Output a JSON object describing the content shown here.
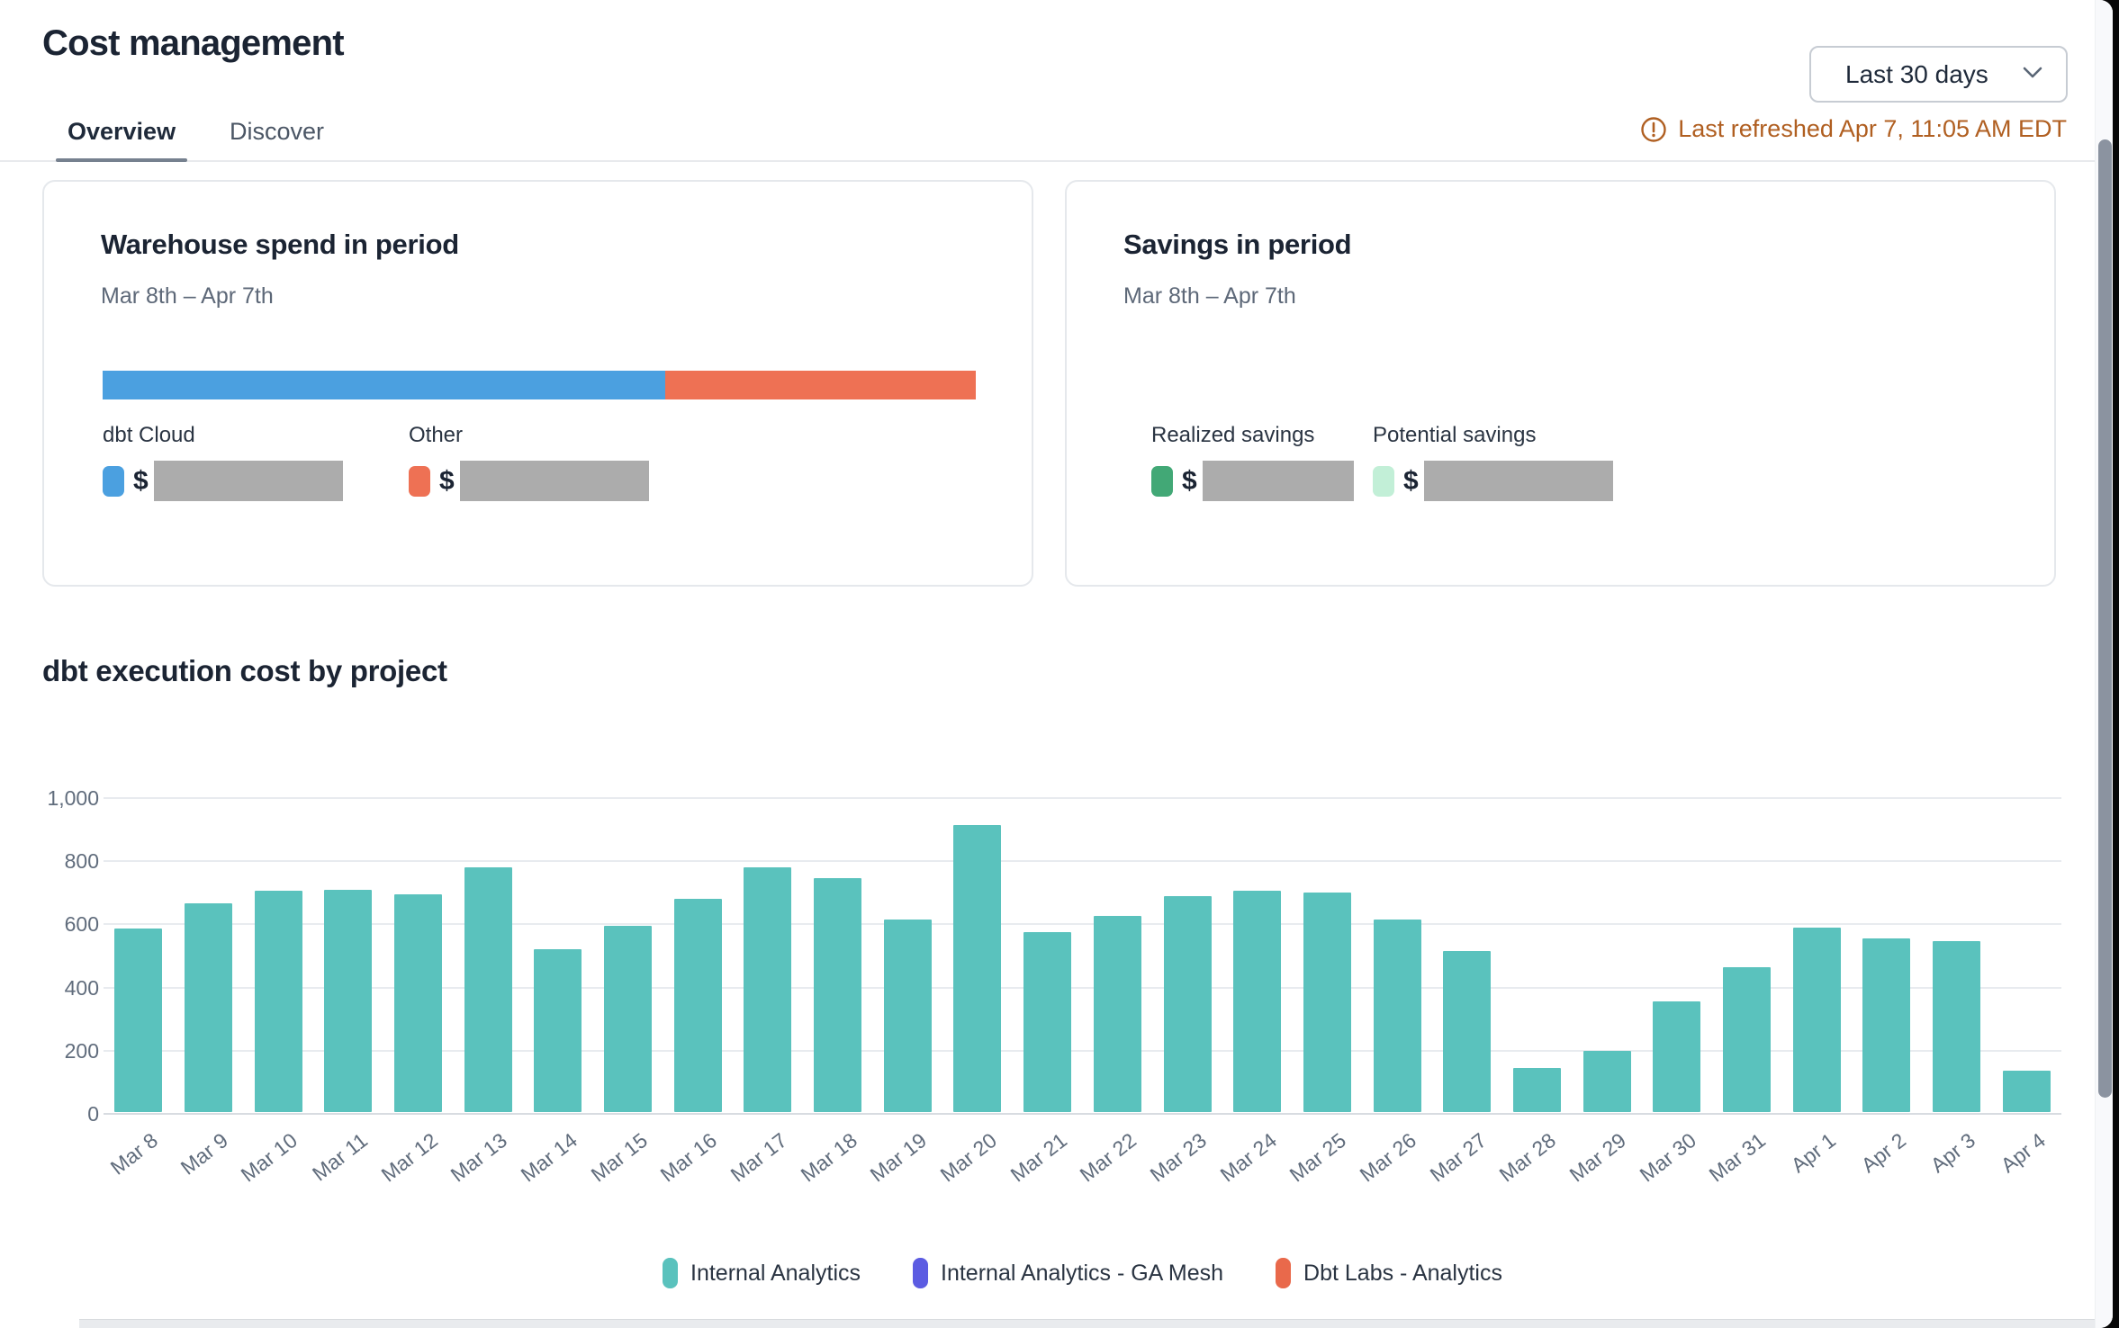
{
  "header": {
    "title": "Cost management",
    "tabs": [
      {
        "label": "Overview",
        "active": true
      },
      {
        "label": "Discover",
        "active": false
      }
    ],
    "date_range": {
      "selected": "Last 30 days"
    },
    "last_refreshed": "Last refreshed Apr 7, 11:05 AM EDT",
    "refresh_color": "#b05f21"
  },
  "cards": {
    "warehouse": {
      "title": "Warehouse spend in period",
      "subtitle": "Mar 8th – Apr 7th",
      "bar_segments": [
        {
          "name": "dbt Cloud",
          "color": "#4ba0e0",
          "fraction": 0.644
        },
        {
          "name": "Other",
          "color": "#ee7154",
          "fraction": 0.356
        }
      ],
      "legend": [
        {
          "label": "dbt Cloud",
          "color": "#4ba0e0",
          "value_prefix": "$",
          "value_redacted": true
        },
        {
          "label": "Other",
          "color": "#ee7154",
          "value_prefix": "$",
          "value_redacted": true
        }
      ]
    },
    "savings": {
      "title": "Savings in period",
      "subtitle": "Mar 8th – Apr 7th",
      "legend": [
        {
          "label": "Realized savings",
          "color": "#42a876",
          "value_prefix": "$",
          "value_redacted": true
        },
        {
          "label": "Potential savings",
          "color": "#c2efd7",
          "value_prefix": "$",
          "value_redacted": true
        }
      ]
    }
  },
  "chart_section": {
    "title": "dbt execution cost by project"
  },
  "chart_data": {
    "type": "bar",
    "title": "dbt execution cost by project",
    "categories": [
      "Mar 8",
      "Mar 9",
      "Mar 10",
      "Mar 11",
      "Mar 12",
      "Mar 13",
      "Mar 14",
      "Mar 15",
      "Mar 16",
      "Mar 17",
      "Mar 18",
      "Mar 19",
      "Mar 20",
      "Mar 21",
      "Mar 22",
      "Mar 23",
      "Mar 24",
      "Mar 25",
      "Mar 26",
      "Mar 27",
      "Mar 28",
      "Mar 29",
      "Mar 30",
      "Mar 31",
      "Apr 1",
      "Apr 2",
      "Apr 3",
      "Apr 4"
    ],
    "series": [
      {
        "name": "Internal Analytics",
        "color": "#5ac2bd",
        "values": [
          580,
          660,
          700,
          705,
          690,
          775,
          515,
          590,
          675,
          775,
          740,
          610,
          910,
          570,
          620,
          685,
          700,
          695,
          610,
          510,
          140,
          195,
          350,
          460,
          585,
          550,
          540,
          130
        ]
      }
    ],
    "legend": [
      {
        "label": "Internal Analytics",
        "color": "#5ac2bd"
      },
      {
        "label": "Internal Analytics - GA Mesh",
        "color": "#5c5ce2"
      },
      {
        "label": "Dbt Labs - Analytics",
        "color": "#e9694b"
      }
    ],
    "xlabel": "",
    "ylabel": "",
    "ylim": [
      0,
      1000
    ],
    "y_ticks": [
      "0",
      "200",
      "400",
      "600",
      "800",
      "1,000"
    ],
    "grid": true,
    "legend_position": "bottom"
  }
}
